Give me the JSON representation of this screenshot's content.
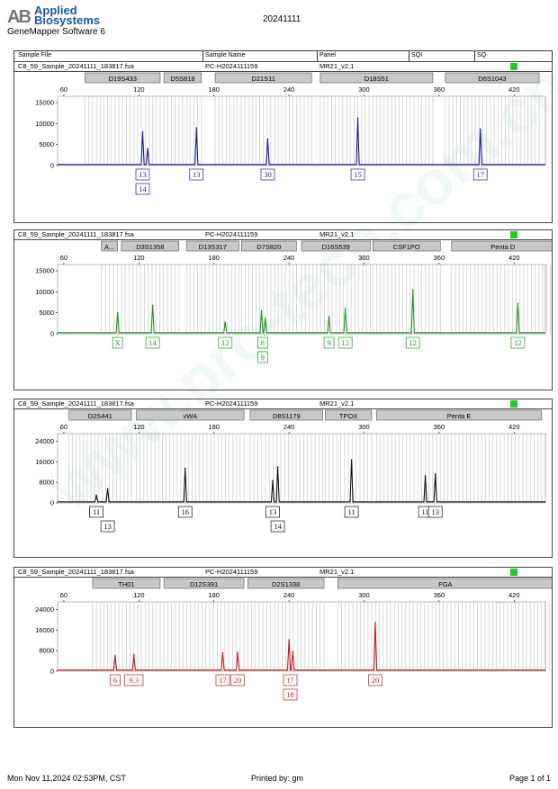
{
  "header": {
    "brand_line1": "Applied",
    "brand_line2": "Biosystems",
    "brand_mark": "AB",
    "software": "GeneMapper Software 6",
    "title": "20241111",
    "columns": [
      "Sample File",
      "Sample Name",
      "Panel",
      "SQI",
      "SQ"
    ]
  },
  "watermark": "www.pro-tech.com.cn",
  "footer": {
    "datetime": "Mon Nov 11,2024 02:53PM, CST",
    "printed_by": "Printed by: gm",
    "page": "Page 1 of 1"
  },
  "sample": {
    "file": "C8_59_Sample_20241111_183817.fsa",
    "name": "PC-H2024111159",
    "panel": "MR21_v2.1",
    "status_color": "#22cc22"
  },
  "chart_data": [
    {
      "type": "line",
      "channel": "blue",
      "color": "#1a1a9e",
      "x_ticks": [
        60,
        120,
        180,
        240,
        300,
        360,
        420
      ],
      "xlim": [
        55,
        445
      ],
      "y_ticks": [
        0,
        5000,
        10000,
        15000
      ],
      "ylim": [
        0,
        16500
      ],
      "markers": [
        {
          "label": "D19S433",
          "start": 77,
          "end": 137
        },
        {
          "label": "D5S818",
          "start": 140,
          "end": 170
        },
        {
          "label": "D21S11",
          "start": 181,
          "end": 258
        },
        {
          "label": "D18S51",
          "start": 265,
          "end": 355
        },
        {
          "label": "D6S1043",
          "start": 365,
          "end": 440
        }
      ],
      "peaks": [
        {
          "x": 123,
          "y": 8000
        },
        {
          "x": 127,
          "y": 4000
        },
        {
          "x": 166,
          "y": 9000
        },
        {
          "x": 223,
          "y": 6300
        },
        {
          "x": 295,
          "y": 11300
        },
        {
          "x": 393,
          "y": 8700
        }
      ],
      "alleles": [
        {
          "x": 123,
          "labels": [
            "13",
            "14"
          ]
        },
        {
          "x": 166,
          "labels": [
            "13"
          ]
        },
        {
          "x": 223,
          "labels": [
            "30"
          ]
        },
        {
          "x": 295,
          "labels": [
            "15"
          ]
        },
        {
          "x": 393,
          "labels": [
            "17"
          ]
        }
      ]
    },
    {
      "type": "line",
      "channel": "green",
      "color": "#1a9a1a",
      "x_ticks": [
        60,
        120,
        180,
        240,
        300,
        360,
        420
      ],
      "xlim": [
        55,
        445
      ],
      "y_ticks": [
        0,
        5000,
        10000,
        15000
      ],
      "ylim": [
        0,
        16500
      ],
      "markers": [
        {
          "label": "A...",
          "start": 90,
          "end": 103
        },
        {
          "label": "D3S1358",
          "start": 106,
          "end": 152
        },
        {
          "label": "D13S317",
          "start": 158,
          "end": 200
        },
        {
          "label": "D7S820",
          "start": 202,
          "end": 246
        },
        {
          "label": "D16S539",
          "start": 250,
          "end": 305
        },
        {
          "label": "CSF1PO",
          "start": 307,
          "end": 361
        },
        {
          "label": "Penta D",
          "start": 370,
          "end": 452
        }
      ],
      "peaks": [
        {
          "x": 103,
          "y": 5000
        },
        {
          "x": 131,
          "y": 6800
        },
        {
          "x": 189,
          "y": 2800
        },
        {
          "x": 218,
          "y": 5500
        },
        {
          "x": 221,
          "y": 3700
        },
        {
          "x": 272,
          "y": 4100
        },
        {
          "x": 285,
          "y": 6000
        },
        {
          "x": 339,
          "y": 10500
        },
        {
          "x": 423,
          "y": 7200
        }
      ],
      "alleles": [
        {
          "x": 103,
          "labels": [
            "X"
          ]
        },
        {
          "x": 131,
          "labels": [
            "14"
          ]
        },
        {
          "x": 189,
          "labels": [
            "12"
          ]
        },
        {
          "x": 219,
          "labels": [
            "8",
            "9"
          ]
        },
        {
          "x": 272,
          "labels": [
            "9"
          ]
        },
        {
          "x": 285,
          "labels": [
            "12"
          ]
        },
        {
          "x": 339,
          "labels": [
            "12"
          ]
        },
        {
          "x": 423,
          "labels": [
            "12"
          ]
        }
      ]
    },
    {
      "type": "line",
      "channel": "black",
      "color": "#111111",
      "x_ticks": [
        60,
        120,
        180,
        240,
        300,
        360,
        420
      ],
      "xlim": [
        55,
        445
      ],
      "y_ticks": [
        0,
        8000,
        16000,
        24000
      ],
      "ylim": [
        0,
        27000
      ],
      "markers": [
        {
          "label": "D2S441",
          "start": 64,
          "end": 114
        },
        {
          "label": "vWA",
          "start": 118,
          "end": 204
        },
        {
          "label": "D8S1179",
          "start": 209,
          "end": 267
        },
        {
          "label": "TPOX",
          "start": 269,
          "end": 306
        },
        {
          "label": "Penta E",
          "start": 310,
          "end": 442
        }
      ],
      "peaks": [
        {
          "x": 86,
          "y": 3000
        },
        {
          "x": 95,
          "y": 5500
        },
        {
          "x": 157,
          "y": 13500
        },
        {
          "x": 227,
          "y": 8700
        },
        {
          "x": 231,
          "y": 14000
        },
        {
          "x": 290,
          "y": 16800
        },
        {
          "x": 349,
          "y": 10500
        },
        {
          "x": 357,
          "y": 11200
        }
      ],
      "alleles": [
        {
          "x": 86,
          "labels": [
            "11"
          ]
        },
        {
          "x": 95,
          "labels": [
            "13"
          ],
          "level": 2
        },
        {
          "x": 157,
          "labels": [
            "16"
          ]
        },
        {
          "x": 227,
          "labels": [
            "13"
          ]
        },
        {
          "x": 231,
          "labels": [
            "14"
          ],
          "level": 2
        },
        {
          "x": 290,
          "labels": [
            "11"
          ]
        },
        {
          "x": 349,
          "labels": [
            "11"
          ]
        },
        {
          "x": 357,
          "labels": [
            "13"
          ]
        }
      ]
    },
    {
      "type": "line",
      "channel": "red",
      "color": "#c41a1a",
      "x_ticks": [
        60,
        120,
        180,
        240,
        300,
        360,
        420
      ],
      "xlim": [
        55,
        445
      ],
      "y_ticks": [
        0,
        8000,
        16000,
        24000
      ],
      "ylim": [
        0,
        27000
      ],
      "markers": [
        {
          "label": "TH01",
          "start": 83,
          "end": 137
        },
        {
          "label": "D12S391",
          "start": 140,
          "end": 204
        },
        {
          "label": "D2S1338",
          "start": 207,
          "end": 268
        },
        {
          "label": "FGA",
          "start": 279,
          "end": 451
        }
      ],
      "peaks": [
        {
          "x": 101,
          "y": 6200
        },
        {
          "x": 116,
          "y": 6500
        },
        {
          "x": 187,
          "y": 7100
        },
        {
          "x": 199,
          "y": 7300
        },
        {
          "x": 240,
          "y": 12200
        },
        {
          "x": 243,
          "y": 7600
        },
        {
          "x": 309,
          "y": 19000
        }
      ],
      "alleles": [
        {
          "x": 101,
          "labels": [
            "6"
          ]
        },
        {
          "x": 116,
          "labels": [
            "9.3"
          ]
        },
        {
          "x": 187,
          "labels": [
            "17"
          ]
        },
        {
          "x": 199,
          "labels": [
            "20"
          ]
        },
        {
          "x": 241,
          "labels": [
            "17",
            "18"
          ]
        },
        {
          "x": 309,
          "labels": [
            "20"
          ]
        }
      ]
    }
  ]
}
